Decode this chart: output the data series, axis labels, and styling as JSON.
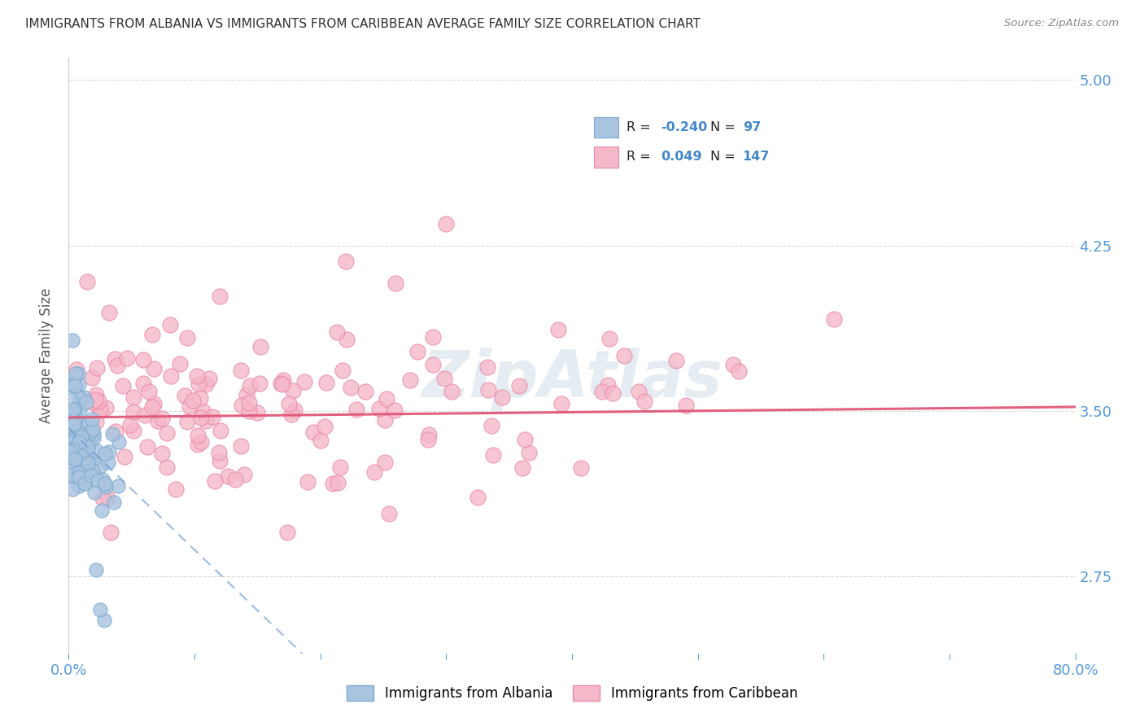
{
  "title": "IMMIGRANTS FROM ALBANIA VS IMMIGRANTS FROM CARIBBEAN AVERAGE FAMILY SIZE CORRELATION CHART",
  "source": "Source: ZipAtlas.com",
  "ylabel": "Average Family Size",
  "xmin": 0.0,
  "xmax": 0.8,
  "ymin": 2.4,
  "ymax": 5.1,
  "yticks": [
    2.75,
    3.5,
    4.25,
    5.0
  ],
  "ytick_labels": [
    "2.75",
    "3.50",
    "4.25",
    "5.00"
  ],
  "xticks": [
    0.0,
    0.1,
    0.2,
    0.3,
    0.4,
    0.5,
    0.6,
    0.7,
    0.8
  ],
  "xticklabels": [
    "0.0%",
    "",
    "",
    "",
    "",
    "",
    "",
    "",
    "80.0%"
  ],
  "legend_albania": "Immigrants from Albania",
  "legend_caribbean": "Immigrants from Caribbean",
  "albania_R": "-0.240",
  "albania_N": "97",
  "caribbean_R": "0.049",
  "caribbean_N": "147",
  "albania_color": "#aac4e0",
  "albania_edge": "#7aaad0",
  "caribbean_color": "#f5b8c8",
  "caribbean_edge": "#e888a8",
  "albania_line_color": "#6699cc",
  "caribbean_line_color": "#e05878",
  "background_color": "#ffffff",
  "grid_color": "#cccccc",
  "title_color": "#333333",
  "axis_color": "#5599dd",
  "legend_text_color": "#333333",
  "legend_value_color": "#4488cc",
  "watermark_color": "#d0dde8"
}
